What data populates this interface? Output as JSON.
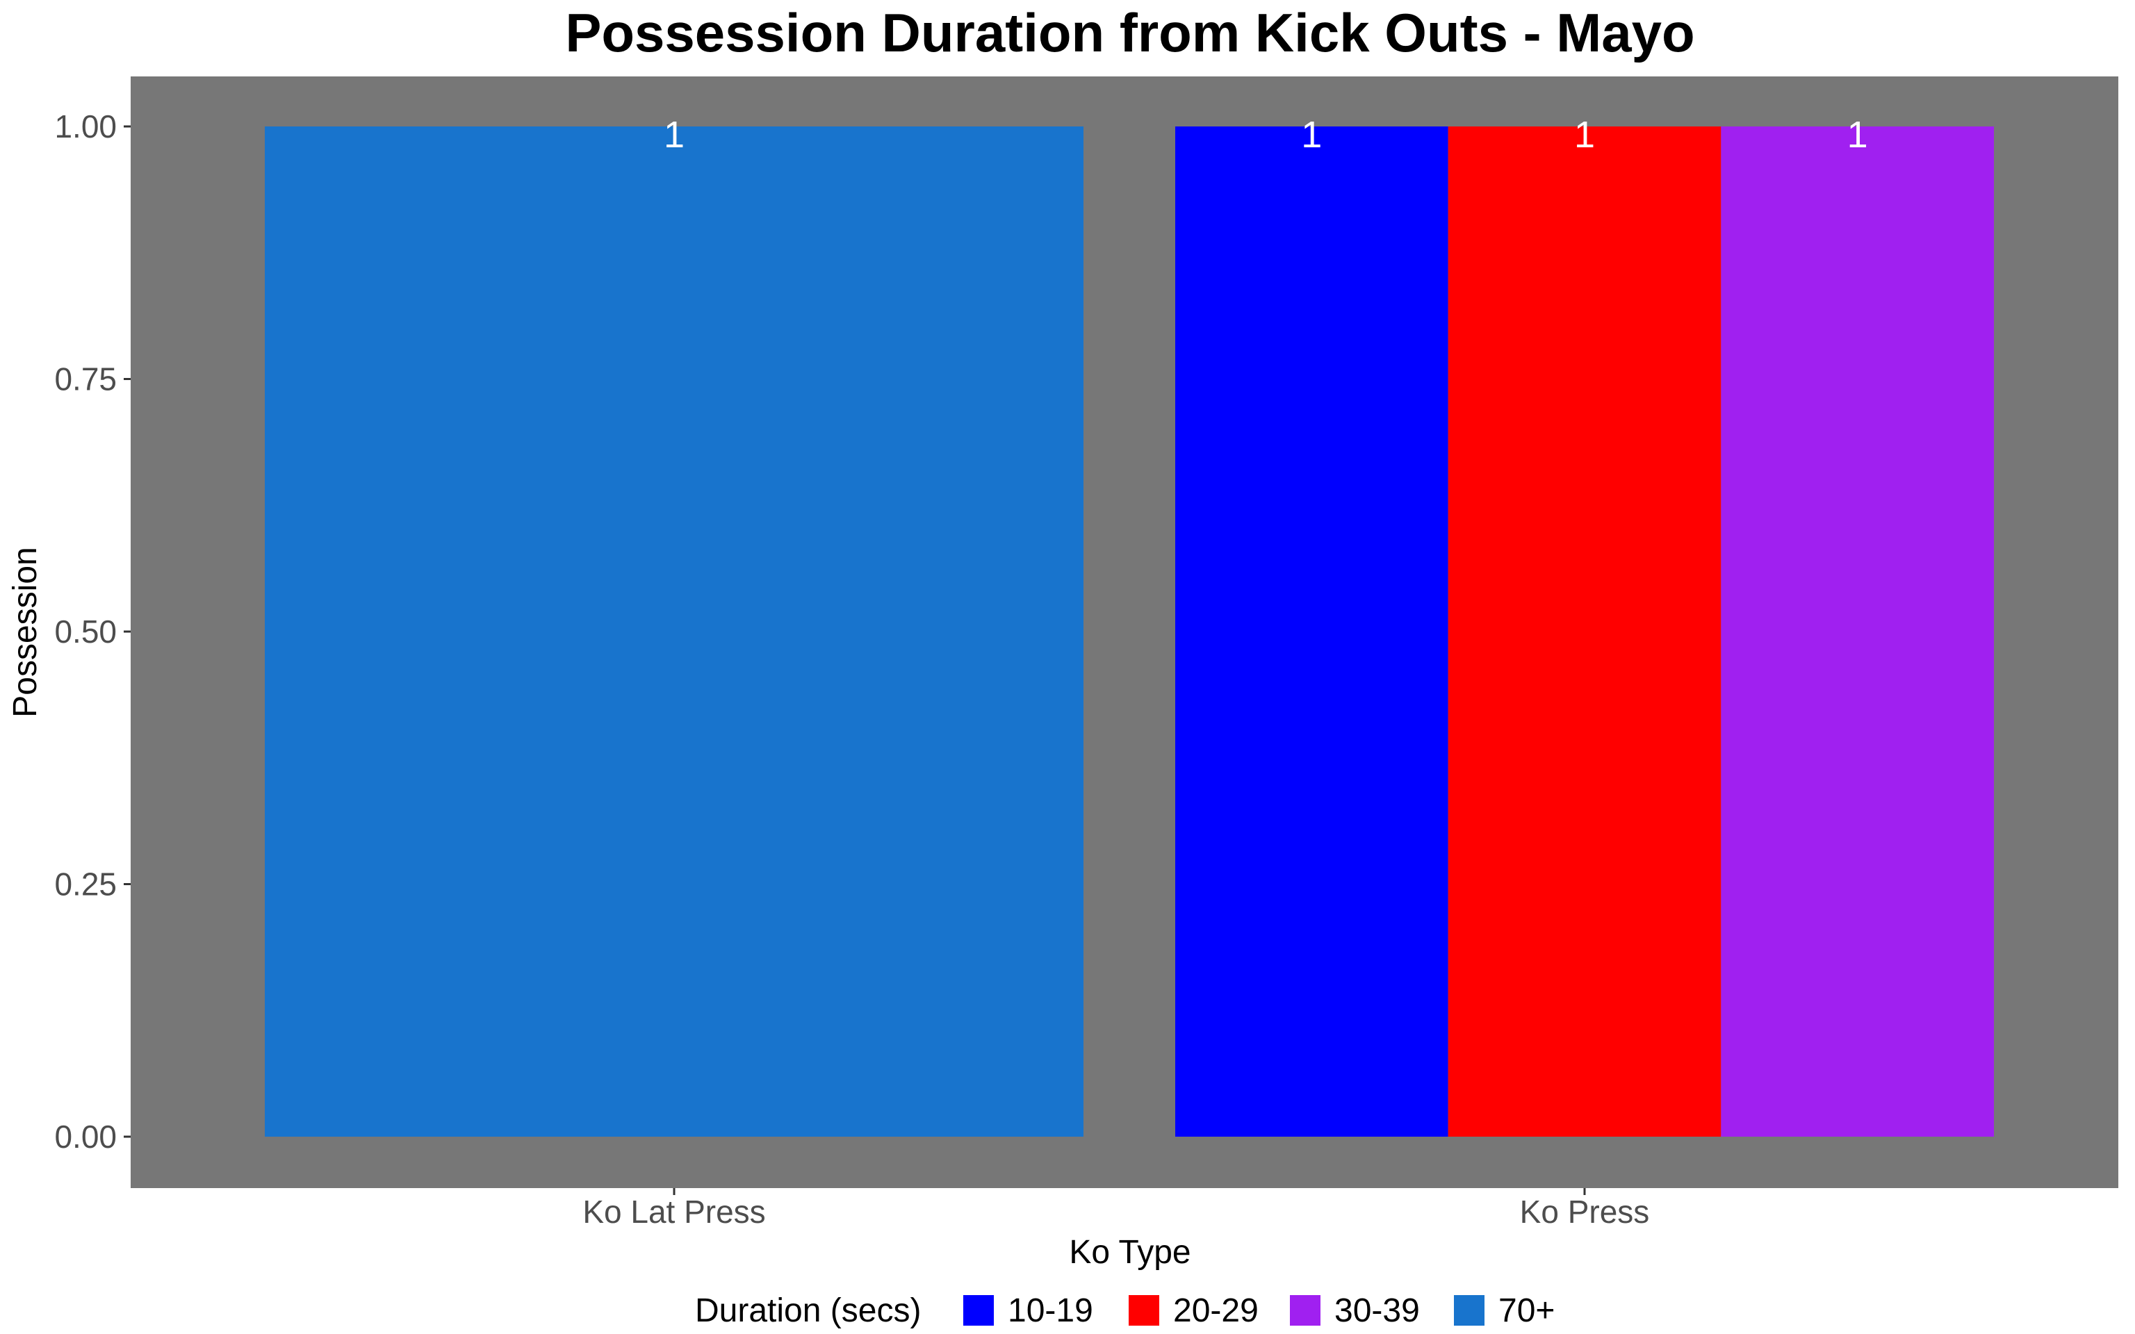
{
  "chart_data": {
    "type": "bar",
    "title": "Possession Duration from Kick Outs - Mayo",
    "xlabel": "Ko Type",
    "ylabel": "Possession",
    "categories": [
      "Ko Lat Press",
      "Ko Press"
    ],
    "ylim": [
      0,
      1
    ],
    "yticks": [
      "0.00",
      "0.25",
      "0.50",
      "0.75",
      "1.00"
    ],
    "yticks_values": [
      0,
      0.25,
      0.5,
      0.75,
      1.0
    ],
    "grid": false,
    "panel_color": "#777777",
    "legend": {
      "title": "Duration (secs)",
      "position": "bottom",
      "entries": [
        {
          "label": "10-19",
          "color": "#0000ff"
        },
        {
          "label": "20-29",
          "color": "#ff0000"
        },
        {
          "label": "30-39",
          "color": "#a020f0"
        },
        {
          "label": "70+",
          "color": "#1874cd"
        }
      ]
    },
    "bars": [
      {
        "category": "Ko Lat Press",
        "series": "70+",
        "value": 1,
        "label": "1",
        "color": "#1874cd"
      },
      {
        "category": "Ko Press",
        "series": "10-19",
        "value": 1,
        "label": "1",
        "color": "#0000ff"
      },
      {
        "category": "Ko Press",
        "series": "20-29",
        "value": 1,
        "label": "1",
        "color": "#ff0000"
      },
      {
        "category": "Ko Press",
        "series": "30-39",
        "value": 1,
        "label": "1",
        "color": "#a020f0"
      }
    ]
  }
}
